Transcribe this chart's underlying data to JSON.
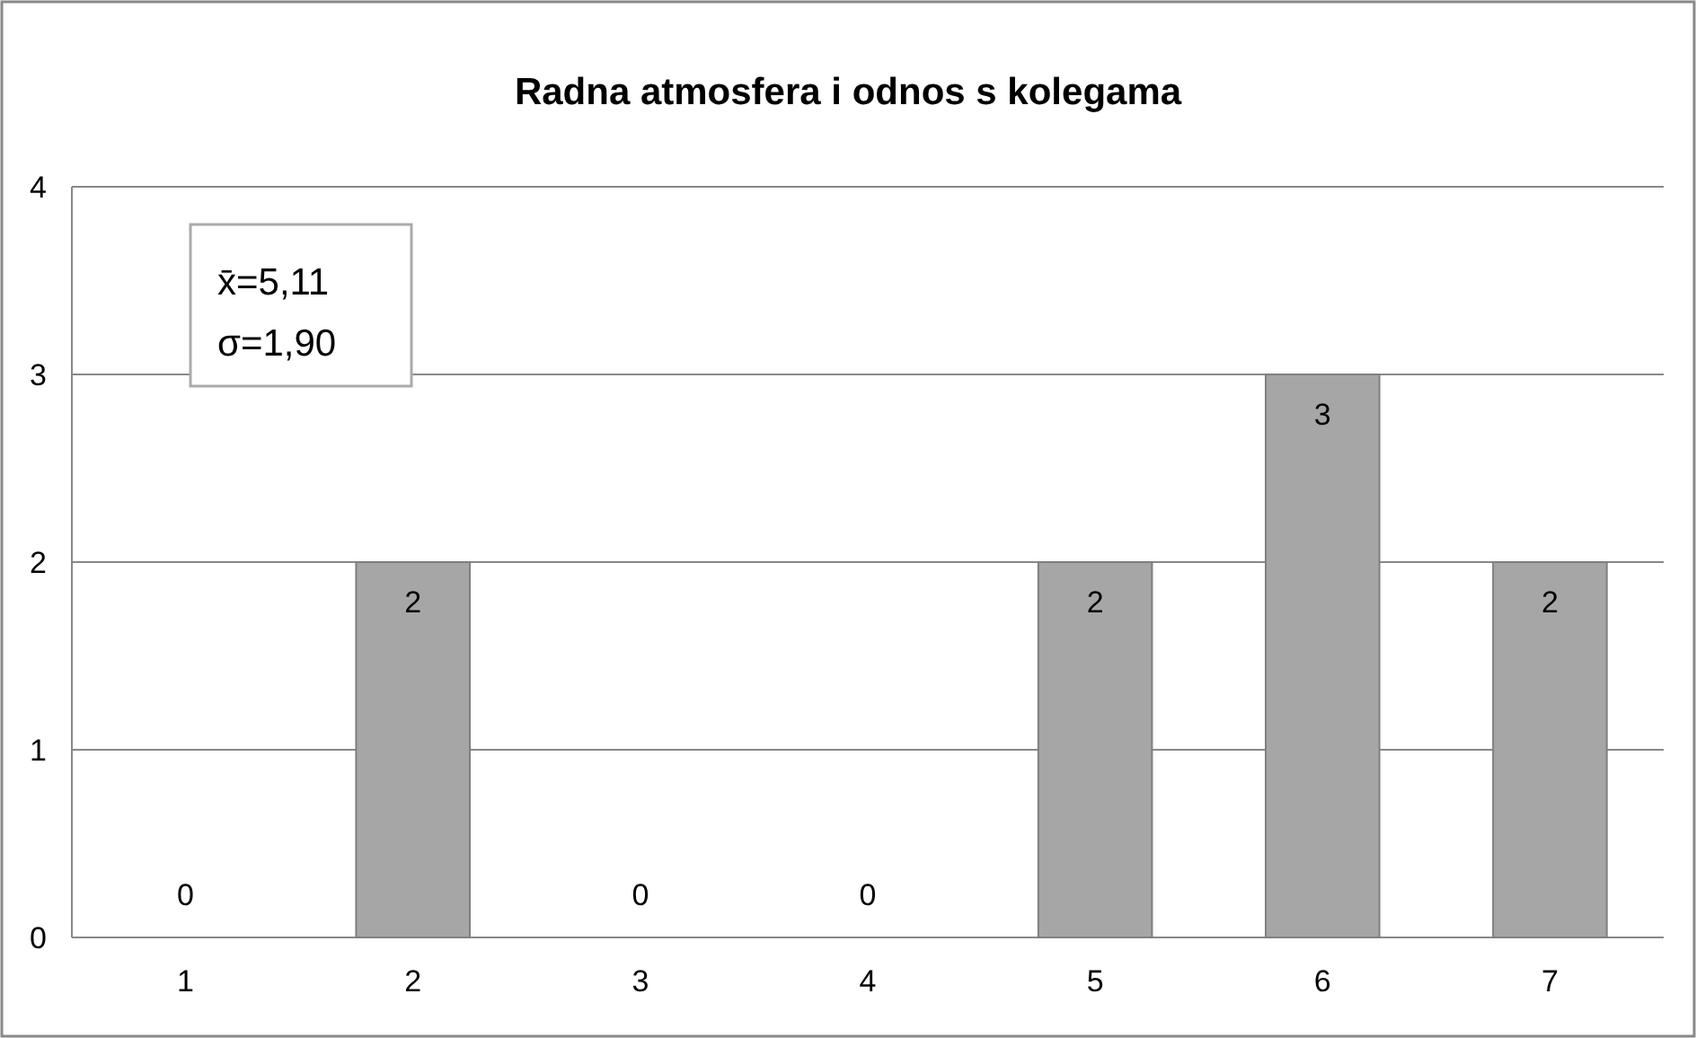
{
  "chart_data": {
    "type": "bar",
    "title": "Radna atmosfera i odnos s kolegama",
    "categories": [
      "1",
      "2",
      "3",
      "4",
      "5",
      "6",
      "7"
    ],
    "values": [
      0,
      2,
      0,
      0,
      2,
      3,
      2
    ],
    "color": "#a6a6a6",
    "ylim": [
      0,
      4
    ],
    "yticks": [
      0,
      1,
      2,
      3,
      4
    ],
    "grid": "y",
    "data_labels": true,
    "annotations": [
      "x̄=5,11",
      "σ=1,90"
    ]
  }
}
